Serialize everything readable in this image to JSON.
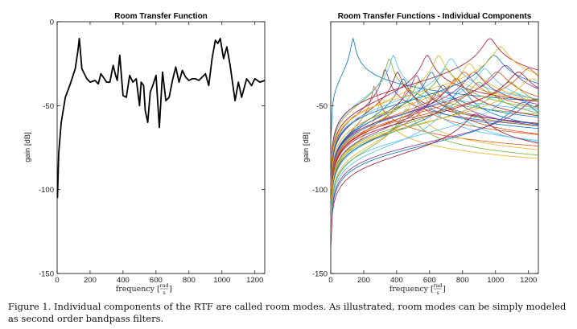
{
  "caption": "Figure 1.  Individual components of the RTF are called room modes. As illustrated, room modes can be simply modeled as second order bandpass filters.",
  "chart_data": [
    {
      "type": "line",
      "title": "Room Transfer Function",
      "xlabel": "frequency",
      "xlabel_unit_num": "rad",
      "xlabel_unit_den": "s",
      "ylabel": "gain [dB]",
      "xlim": [
        0,
        1260
      ],
      "ylim": [
        -150,
        0
      ],
      "xticks": [
        0,
        200,
        400,
        600,
        800,
        1000,
        1200
      ],
      "yticks": [
        0,
        -50,
        -100,
        -150
      ],
      "grid": false,
      "series": [
        {
          "color": "#000000",
          "x": [
            2,
            10,
            25,
            50,
            80,
            110,
            125,
            135,
            150,
            180,
            200,
            230,
            250,
            265,
            280,
            300,
            320,
            340,
            355,
            365,
            380,
            400,
            420,
            440,
            460,
            480,
            500,
            510,
            525,
            535,
            550,
            565,
            580,
            600,
            620,
            640,
            660,
            680,
            700,
            720,
            740,
            760,
            780,
            800,
            820,
            840,
            860,
            880,
            900,
            920,
            940,
            960,
            975,
            990,
            1010,
            1030,
            1050,
            1060,
            1080,
            1100,
            1120,
            1150,
            1180,
            1200,
            1230,
            1260
          ],
          "y": [
            -105,
            -78,
            -60,
            -45,
            -37,
            -28,
            -18,
            -10,
            -28,
            -34,
            -36,
            -35,
            -37,
            -31,
            -33,
            -36,
            -36,
            -26,
            -32,
            -35,
            -20,
            -44,
            -45,
            -32,
            -36,
            -34,
            -50,
            -36,
            -38,
            -53,
            -60,
            -42,
            -38,
            -32,
            -63,
            -30,
            -47,
            -45,
            -35,
            -27,
            -36,
            -29,
            -33,
            -35,
            -34,
            -34,
            -35,
            -33,
            -31,
            -38,
            -22,
            -11,
            -13,
            -10,
            -22,
            -15,
            -26,
            -33,
            -47,
            -36,
            -45,
            -34,
            -38,
            -34,
            -36,
            -35
          ]
        }
      ]
    },
    {
      "type": "line",
      "title": "Room Transfer Functions - Individual Components",
      "xlabel": "frequency",
      "xlabel_unit_num": "rad",
      "xlabel_unit_den": "s",
      "ylabel": "gain [dB]",
      "xlim": [
        0,
        1260
      ],
      "ylim": [
        -150,
        0
      ],
      "xticks": [
        0,
        200,
        400,
        600,
        800,
        1000,
        1200
      ],
      "yticks": [
        -50,
        -100,
        -150
      ],
      "grid": false,
      "colors": [
        "#0072BD",
        "#D95319",
        "#EDB120",
        "#7E2F8E",
        "#77AC30",
        "#4DBEEE",
        "#A2142F"
      ],
      "modes": [
        {
          "f": 135,
          "peak": -10,
          "q": 8
        },
        {
          "f": 265,
          "peak": -38,
          "q": 14
        },
        {
          "f": 300,
          "peak": -48,
          "q": 12
        },
        {
          "f": 330,
          "peak": -28,
          "q": 14
        },
        {
          "f": 355,
          "peak": -22,
          "q": 14
        },
        {
          "f": 380,
          "peak": -20,
          "q": 14
        },
        {
          "f": 405,
          "peak": -30,
          "q": 12
        },
        {
          "f": 440,
          "peak": -34,
          "q": 12
        },
        {
          "f": 470,
          "peak": -40,
          "q": 10
        },
        {
          "f": 495,
          "peak": -48,
          "q": 12
        },
        {
          "f": 520,
          "peak": -32,
          "q": 14
        },
        {
          "f": 540,
          "peak": -35,
          "q": 12
        },
        {
          "f": 560,
          "peak": -44,
          "q": 12
        },
        {
          "f": 585,
          "peak": -20,
          "q": 14
        },
        {
          "f": 610,
          "peak": -30,
          "q": 14
        },
        {
          "f": 640,
          "peak": -42,
          "q": 12
        },
        {
          "f": 655,
          "peak": -20,
          "q": 16
        },
        {
          "f": 680,
          "peak": -38,
          "q": 12
        },
        {
          "f": 700,
          "peak": -28,
          "q": 12
        },
        {
          "f": 730,
          "peak": -22,
          "q": 14
        },
        {
          "f": 760,
          "peak": -34,
          "q": 12
        },
        {
          "f": 790,
          "peak": -40,
          "q": 12
        },
        {
          "f": 810,
          "peak": -30,
          "q": 12
        },
        {
          "f": 840,
          "peak": -25,
          "q": 14
        },
        {
          "f": 870,
          "peak": -30,
          "q": 12
        },
        {
          "f": 900,
          "peak": -36,
          "q": 12
        },
        {
          "f": 935,
          "peak": -28,
          "q": 14
        },
        {
          "f": 965,
          "peak": -10,
          "q": 16
        },
        {
          "f": 990,
          "peak": -20,
          "q": 14
        },
        {
          "f": 1010,
          "peak": -30,
          "q": 12
        },
        {
          "f": 1030,
          "peak": -15,
          "q": 16
        },
        {
          "f": 1060,
          "peak": -26,
          "q": 14
        },
        {
          "f": 1085,
          "peak": -36,
          "q": 12
        },
        {
          "f": 1110,
          "peak": -42,
          "q": 12
        },
        {
          "f": 1140,
          "peak": -30,
          "q": 14
        },
        {
          "f": 1170,
          "peak": -48,
          "q": 12
        },
        {
          "f": 1200,
          "peak": -28,
          "q": 14
        },
        {
          "f": 1220,
          "peak": -34,
          "q": 12
        },
        {
          "f": 1240,
          "peak": -46,
          "q": 12
        },
        {
          "f": 460,
          "peak": -52,
          "q": 10
        },
        {
          "f": 720,
          "peak": -50,
          "q": 10
        },
        {
          "f": 880,
          "peak": -55,
          "q": 10
        }
      ]
    }
  ]
}
